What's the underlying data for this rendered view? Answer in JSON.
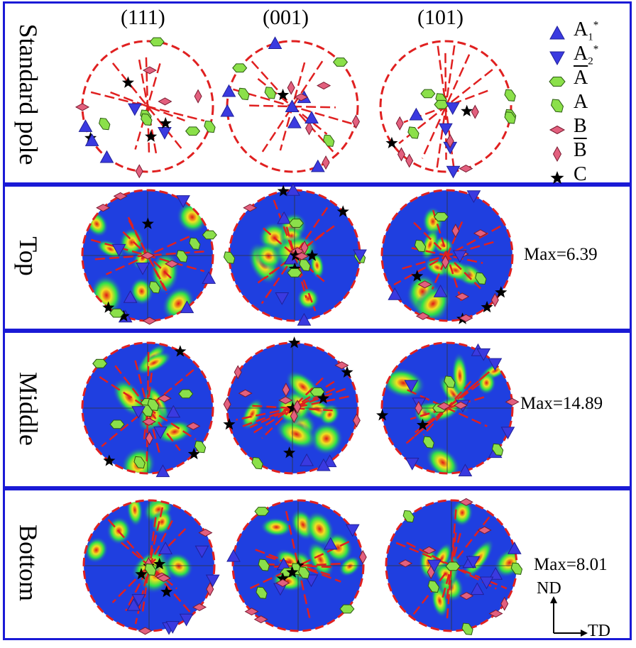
{
  "columns": [
    "(111)",
    "(001)",
    "(101)"
  ],
  "rows": [
    {
      "label": "Standard pole",
      "max": ""
    },
    {
      "label": "Top",
      "max": "Max=6.39"
    },
    {
      "label": "Middle",
      "max": "Max=14.89"
    },
    {
      "label": "Bottom",
      "max": "Max=8.01"
    }
  ],
  "legend": [
    {
      "symbol": "triangle-up",
      "label": "A",
      "sub": "1",
      "sup": "*",
      "overline": false,
      "color": "#1a1ad6"
    },
    {
      "symbol": "triangle-down",
      "label": "A",
      "sub": "2",
      "sup": "*",
      "overline": false,
      "color": "#1a1ad6"
    },
    {
      "symbol": "hexagon-flat",
      "label": "A",
      "sub": "",
      "sup": "",
      "overline": true,
      "color": "#7ddc3c"
    },
    {
      "symbol": "hexagon-tilted",
      "label": "A",
      "sub": "",
      "sup": "",
      "overline": false,
      "color": "#7ddc3c"
    },
    {
      "symbol": "diamond-wide",
      "label": "B",
      "sub": "",
      "sup": "",
      "overline": false,
      "color": "#e0557a"
    },
    {
      "symbol": "diamond-tall",
      "label": "B",
      "sub": "",
      "sup": "",
      "overline": true,
      "color": "#e0557a"
    },
    {
      "symbol": "star",
      "label": "C",
      "sub": "",
      "sup": "",
      "overline": false,
      "color": "#000000"
    }
  ],
  "axes": {
    "vertical": "ND",
    "horizontal": "TD"
  },
  "colors": {
    "border": "#1a1ad6",
    "circle": "#e02020",
    "map_low": "#1f3fe0",
    "map_mid": "#2ee04a",
    "map_high": "#e01818"
  }
}
